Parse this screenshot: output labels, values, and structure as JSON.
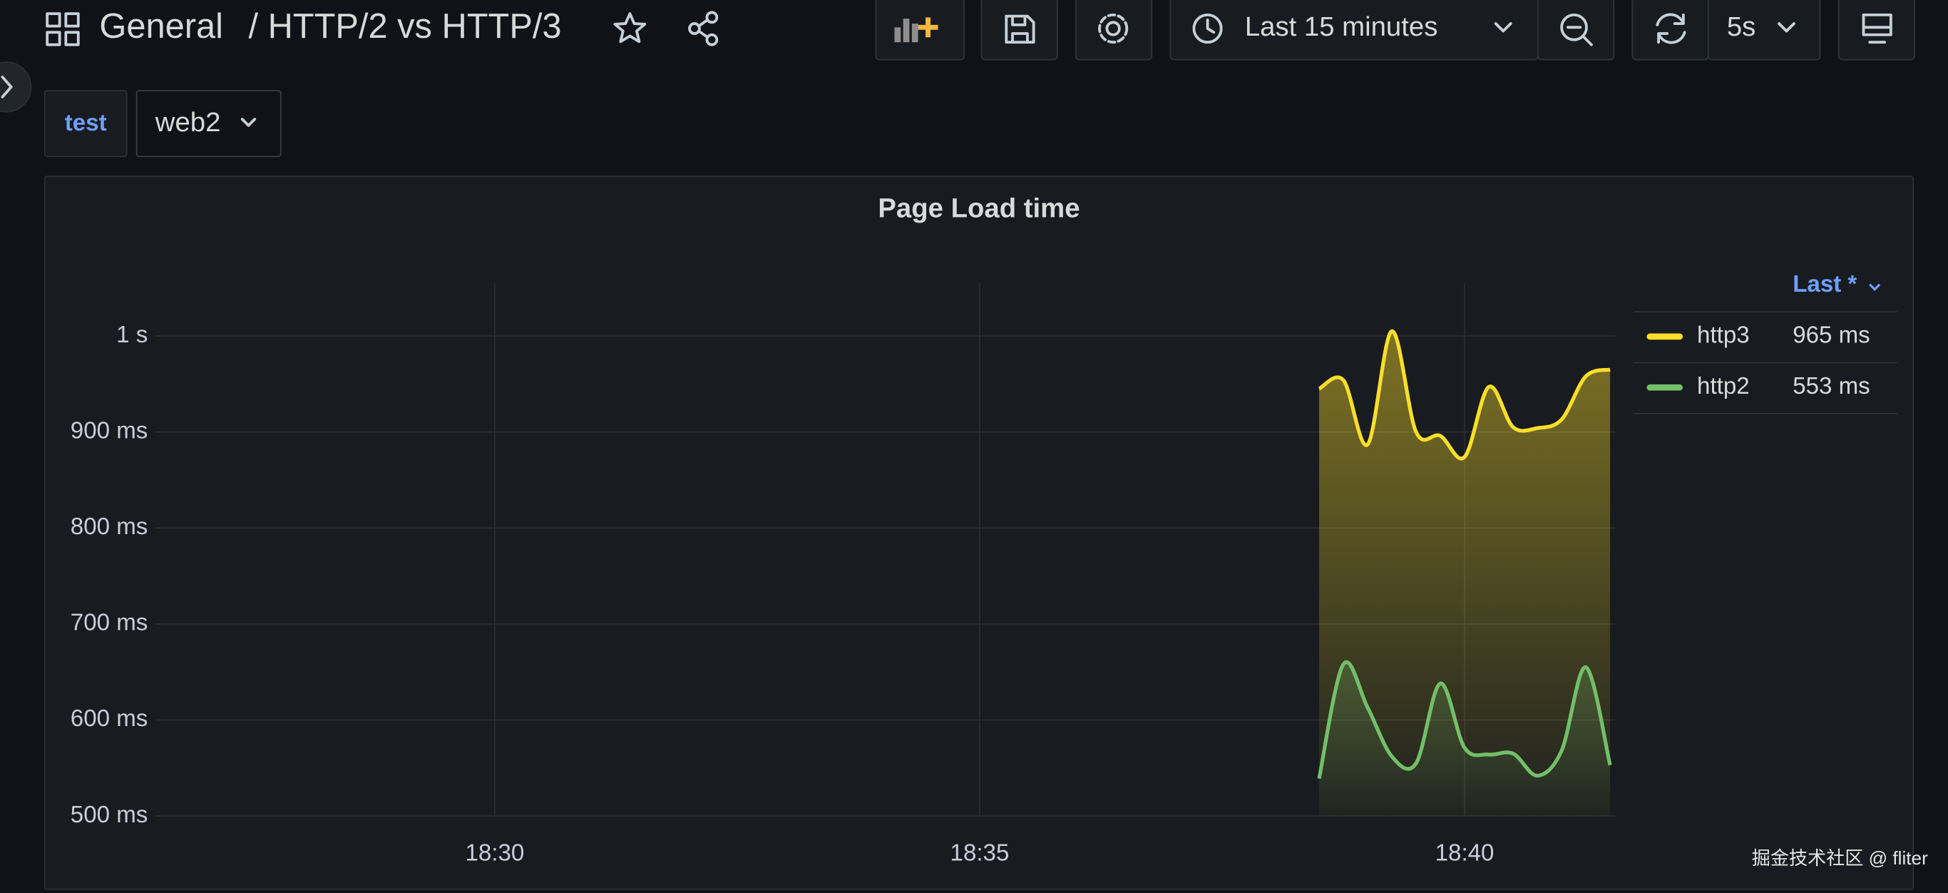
{
  "header": {
    "folder": "General",
    "title": "/ HTTP/2 vs HTTP/3",
    "time_range": "Last 15 minutes",
    "refresh": "5s"
  },
  "variables": [
    {
      "label": "test",
      "value": "web2"
    }
  ],
  "watermark": "掘金技术社区 @ fliter",
  "chart_data": {
    "type": "line",
    "title": "Page Load time",
    "x": [
      1118.5,
      1118.75,
      1119,
      1119.25,
      1119.5,
      1119.75,
      1120,
      1120.25,
      1120.5,
      1120.75,
      1121,
      1121.25,
      1121.5
    ],
    "xlim": [
      1106.5,
      1121.5
    ],
    "xticks": [
      {
        "value": 1110,
        "label": "18:30"
      },
      {
        "value": 1115,
        "label": "18:35"
      },
      {
        "value": 1120,
        "label": "18:40"
      }
    ],
    "ylim": [
      500,
      1055
    ],
    "yticks": [
      {
        "value": 500,
        "label": "500 ms"
      },
      {
        "value": 600,
        "label": "600 ms"
      },
      {
        "value": 700,
        "label": "700 ms"
      },
      {
        "value": 800,
        "label": "800 ms"
      },
      {
        "value": 900,
        "label": "900 ms"
      },
      {
        "value": 1000,
        "label": "1 s"
      }
    ],
    "grid": true,
    "legend_header": "Last *",
    "series": [
      {
        "name": "http3",
        "color": "#fade2a",
        "values": [
          945,
          954,
          887,
          1005,
          900,
          896,
          874,
          947,
          905,
          904,
          913,
          958,
          965
        ],
        "legend_value": "965 ms"
      },
      {
        "name": "http2",
        "color": "#73bf69",
        "values": [
          539,
          658,
          613,
          562,
          555,
          638,
          571,
          564,
          565,
          542,
          568,
          655,
          553
        ],
        "legend_value": "553 ms"
      }
    ]
  }
}
